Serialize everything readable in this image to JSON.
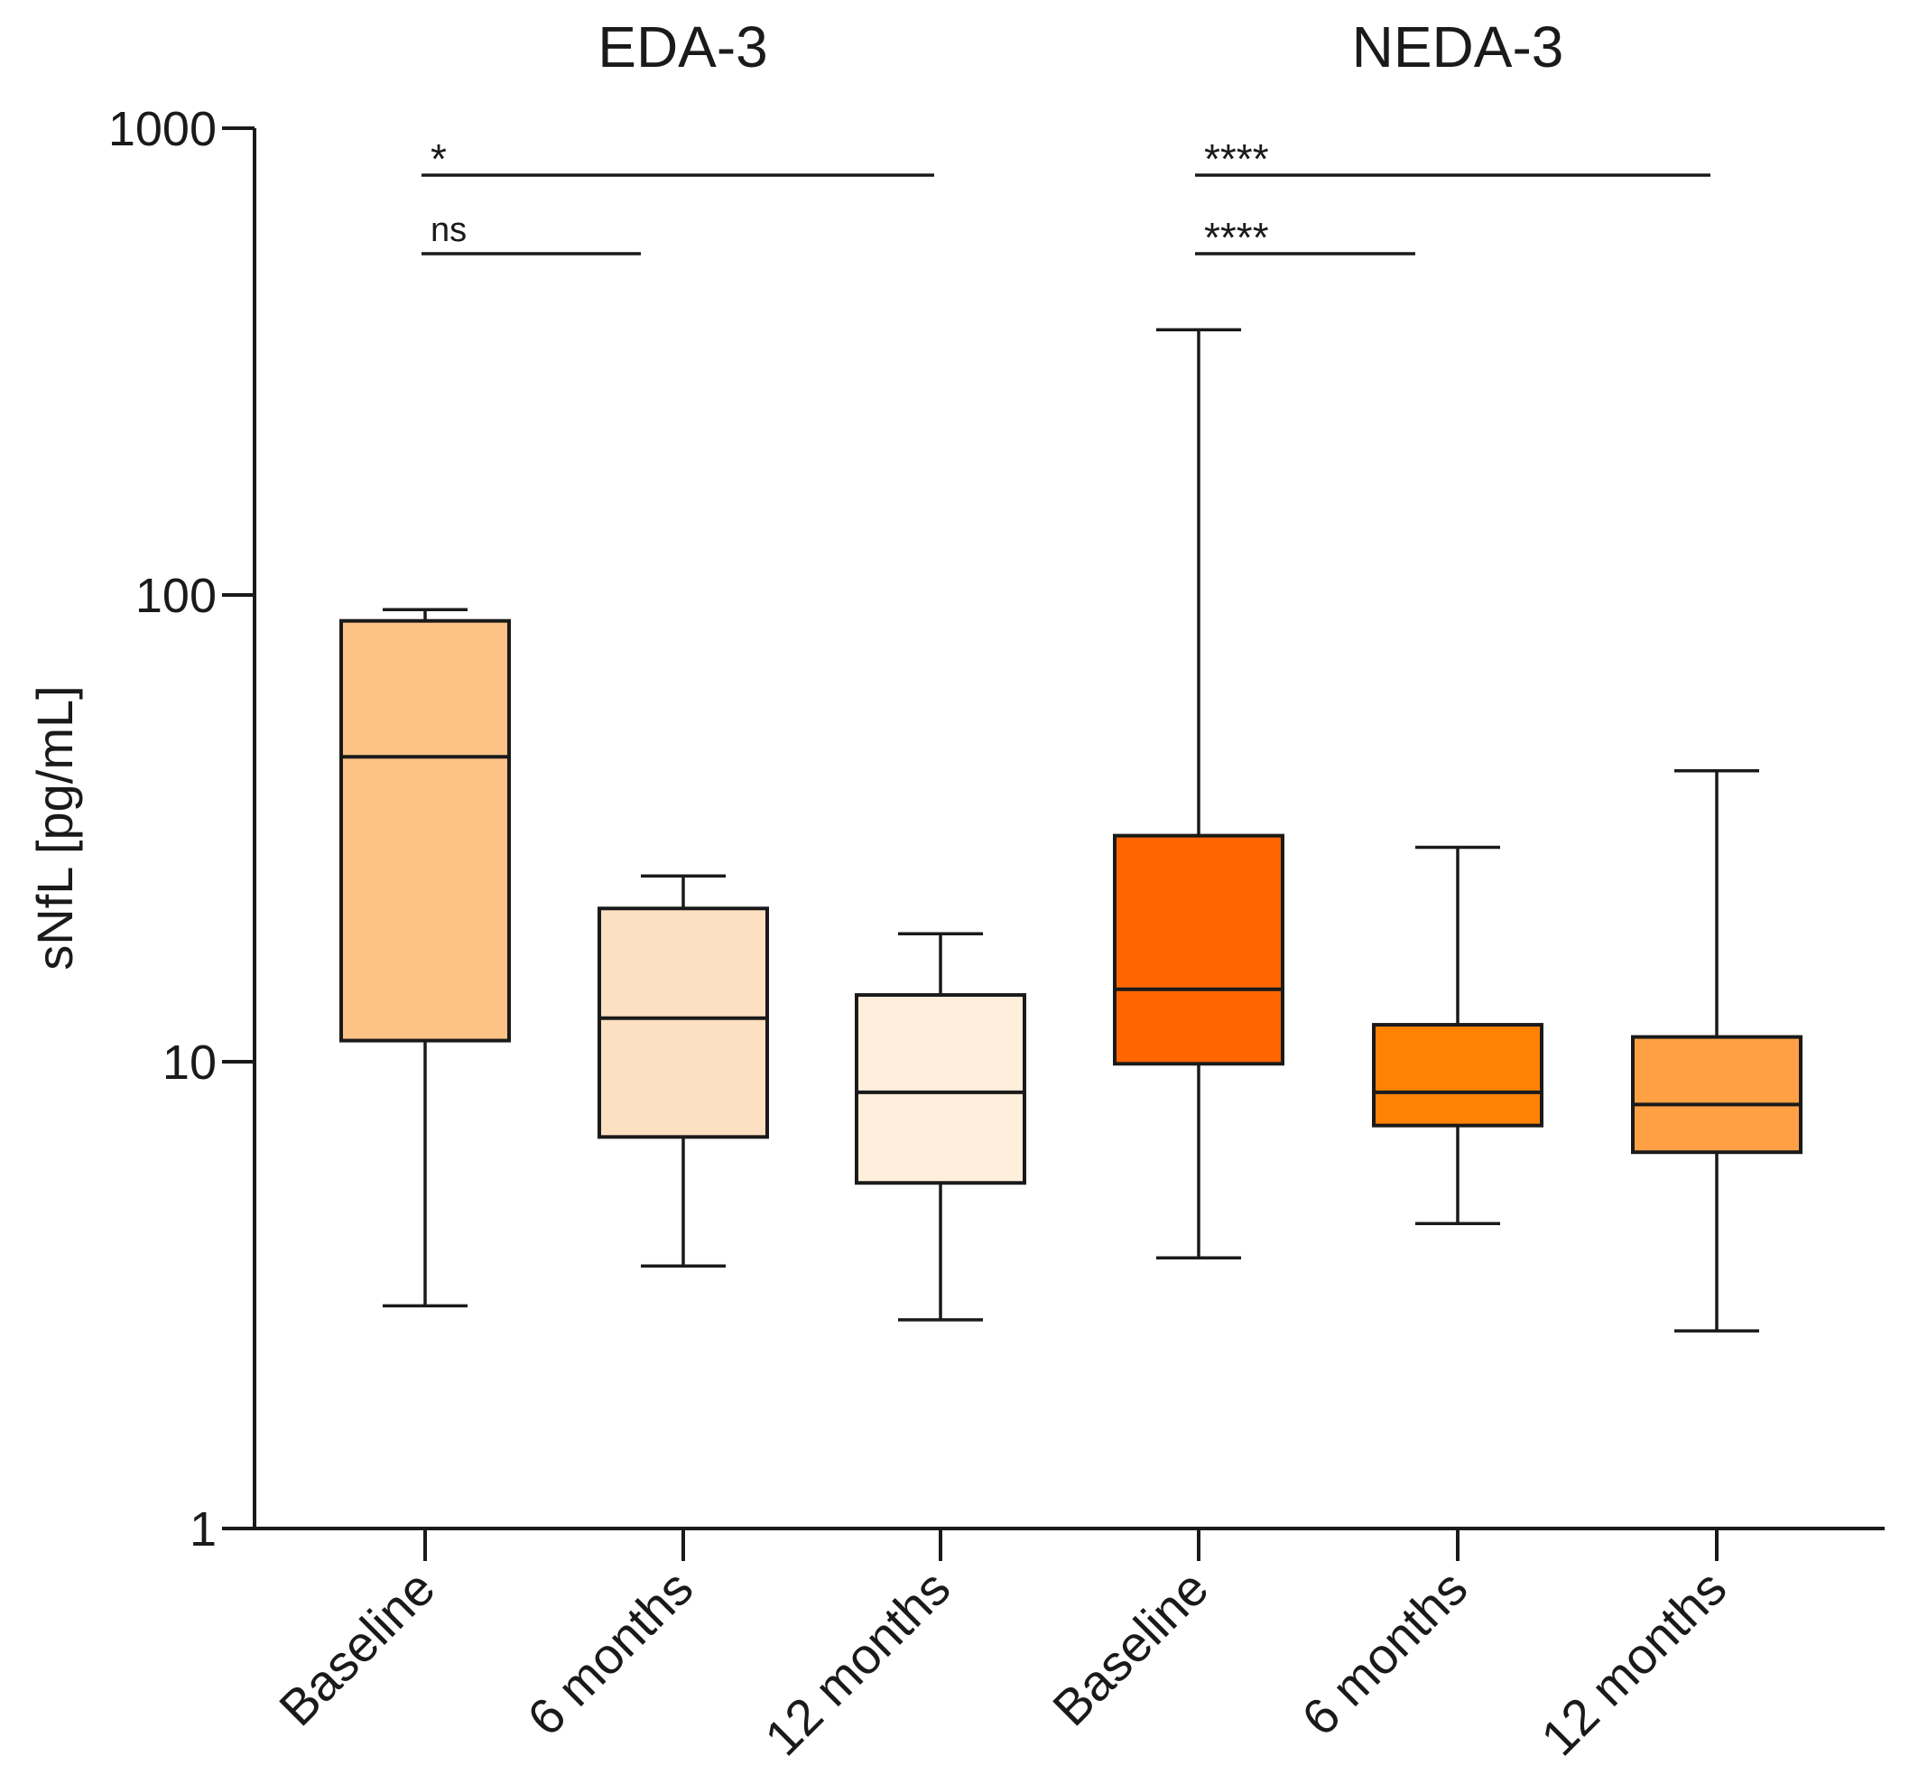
{
  "chart_data": {
    "type": "box",
    "ylabel": "sNfL [pg/mL]",
    "yscale": "log",
    "ylim": [
      1,
      1000
    ],
    "yticks": [
      {
        "value": 1,
        "label": "1"
      },
      {
        "value": 10,
        "label": "10"
      },
      {
        "value": 100,
        "label": "100"
      },
      {
        "value": 1000,
        "label": "1000"
      }
    ],
    "groups": [
      {
        "title": "EDA-3",
        "categories": [
          0,
          1,
          2
        ]
      },
      {
        "title": "NEDA-3",
        "categories": [
          3,
          4,
          5
        ]
      }
    ],
    "categories": [
      "Baseline",
      "6 months",
      "12 months",
      "Baseline",
      "6 months",
      "12 months"
    ],
    "boxes": [
      {
        "group": "EDA-3",
        "category": "Baseline",
        "min": 3.0,
        "q1": 11.1,
        "median": 45,
        "q3": 88,
        "max": 93,
        "color": "#FDC286"
      },
      {
        "group": "EDA-3",
        "category": "6 months",
        "min": 3.65,
        "q1": 6.9,
        "median": 12.4,
        "q3": 21.3,
        "max": 25,
        "color": "#FDDFC1"
      },
      {
        "group": "EDA-3",
        "category": "12 months",
        "min": 2.8,
        "q1": 5.5,
        "median": 8.6,
        "q3": 13.9,
        "max": 18.8,
        "color": "#FEEEDC"
      },
      {
        "group": "NEDA-3",
        "category": "Baseline",
        "min": 3.8,
        "q1": 9.9,
        "median": 14.3,
        "q3": 30.5,
        "max": 370,
        "color": "#FF6600"
      },
      {
        "group": "NEDA-3",
        "category": "6 months",
        "min": 4.5,
        "q1": 7.3,
        "median": 8.6,
        "q3": 12.0,
        "max": 28.8,
        "color": "#FF8205"
      },
      {
        "group": "NEDA-3",
        "category": "12 months",
        "min": 2.65,
        "q1": 6.4,
        "median": 8.1,
        "q3": 11.3,
        "max": 42,
        "color": "#FFA045"
      }
    ],
    "significance": [
      {
        "from": 0,
        "to": 2,
        "label": "*",
        "level": 1
      },
      {
        "from": 0,
        "to": 1,
        "label": "ns",
        "level": 0
      },
      {
        "from": 3,
        "to": 5,
        "label": "****",
        "level": 1
      },
      {
        "from": 3,
        "to": 4,
        "label": "****",
        "level": 0
      }
    ]
  }
}
